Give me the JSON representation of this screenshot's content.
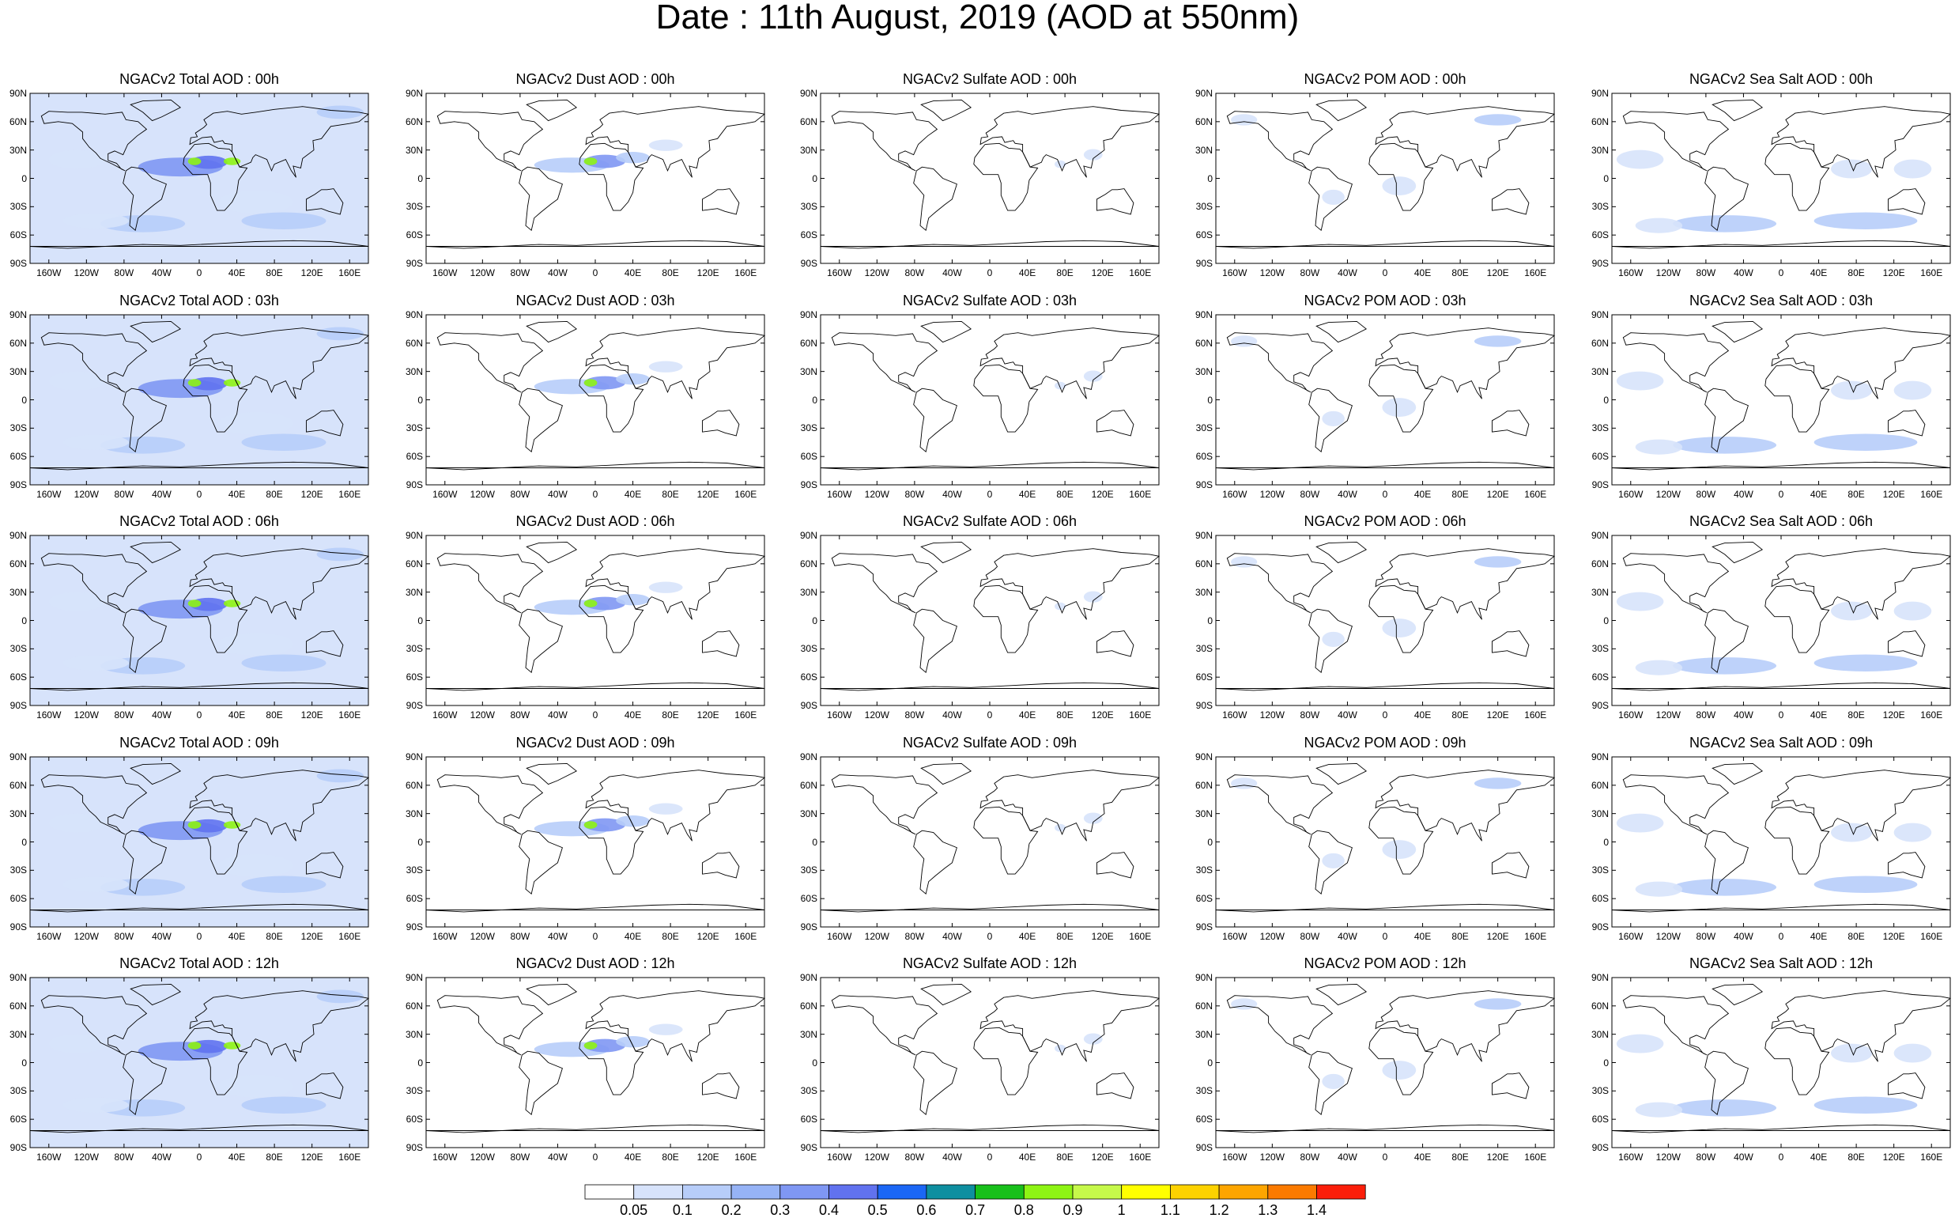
{
  "title": "Date : 11th August, 2019 (AOD at 550nm)",
  "rows": [
    [
      "NGACv2 Total AOD : 00h",
      "NGACv2 Dust AOD : 00h",
      "NGACv2 Sulfate AOD : 00h",
      "NGACv2 POM AOD : 00h",
      "NGACv2 Sea Salt AOD : 00h"
    ],
    [
      "NGACv2 Total AOD : 03h",
      "NGACv2 Dust AOD : 03h",
      "NGACv2 Sulfate AOD : 03h",
      "NGACv2 POM AOD : 03h",
      "NGACv2 Sea Salt AOD : 03h"
    ],
    [
      "NGACv2 Total AOD : 06h",
      "NGACv2 Dust AOD : 06h",
      "NGACv2 Sulfate AOD : 06h",
      "NGACv2 POM AOD : 06h",
      "NGACv2 Sea Salt AOD : 06h"
    ],
    [
      "NGACv2 Total AOD : 09h",
      "NGACv2 Dust AOD : 09h",
      "NGACv2 Sulfate AOD : 09h",
      "NGACv2 POM AOD : 09h",
      "NGACv2 Sea Salt  AOD : 09h"
    ],
    [
      "NGACv2 Total AOD :  12h",
      "NGACv2 Dust AOD : 12h",
      "NGACv2 Sulfate AOD : 12h",
      "NGACv2 POM  AOD : 12h",
      "NGACv2 Sea Salt  AOD : 12h"
    ]
  ],
  "axes": {
    "lat_ticks": [
      "90N",
      "60N",
      "30N",
      "0",
      "30S",
      "60S",
      "90S"
    ],
    "lon_ticks": [
      "160W",
      "120W",
      "80W",
      "40W",
      "0",
      "40E",
      "80E",
      "120E",
      "160E"
    ],
    "lon_values": [
      -160,
      -120,
      -80,
      -40,
      0,
      40,
      80,
      120,
      160
    ],
    "lat_values": [
      90,
      60,
      30,
      0,
      -30,
      -60,
      -90
    ]
  },
  "colorbar": {
    "labels": [
      "0.05",
      "0.1",
      "0.2",
      "0.3",
      "0.4",
      "0.5",
      "0.6",
      "0.7",
      "0.8",
      "0.9",
      "1",
      "1.1",
      "1.2",
      "1.3",
      "1.4"
    ],
    "colors": [
      "#ffffff",
      "#d7e3fb",
      "#b7cdf9",
      "#96b3f6",
      "#7f97f3",
      "#6172ef",
      "#1b67f5",
      "#0e8fa0",
      "#18c01b",
      "#8ef414",
      "#c6f94a",
      "#ffff00",
      "#fdd200",
      "#fda500",
      "#fb7a00",
      "#fb1e0a"
    ]
  },
  "colors": {
    "low": "#d7e3fb",
    "mid": "#b7cdf9",
    "high": "#7f97f3",
    "dense": "#6172ef",
    "peak": "#8ef414",
    "coast": "#000000"
  }
}
